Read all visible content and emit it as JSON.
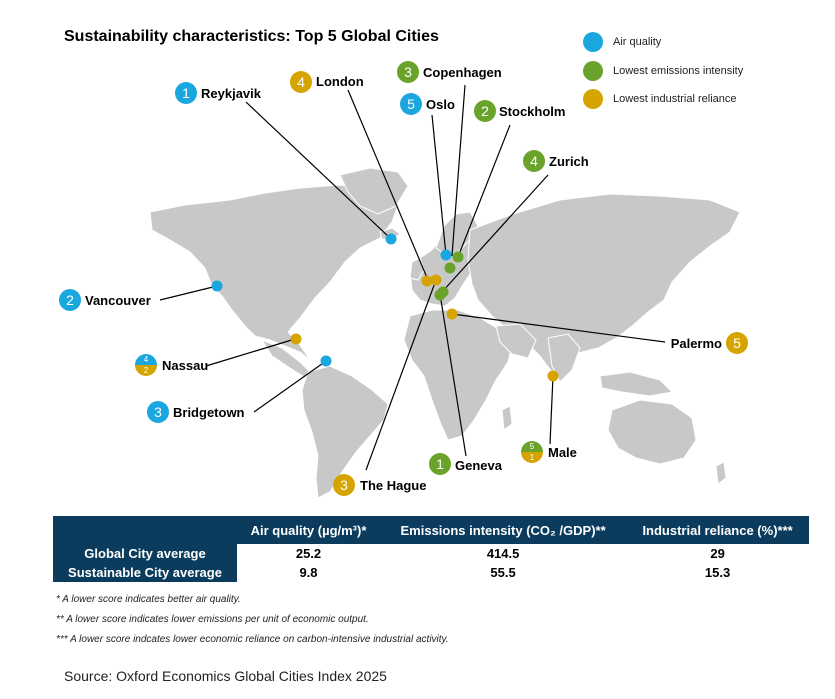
{
  "title": "Sustainability characteristics: Top 5 Global Cities",
  "legend": [
    {
      "label": "Air quality",
      "color": "#1aa7e0"
    },
    {
      "label": "Lowest emissions intensity",
      "color": "#6aa32b"
    },
    {
      "label": "Lowest industrial reliance",
      "color": "#d6a400"
    }
  ],
  "cities": [
    {
      "name": "Reykjavik",
      "rank": "1",
      "category": "air"
    },
    {
      "name": "Vancouver",
      "rank": "2",
      "category": "air"
    },
    {
      "name": "Bridgetown",
      "rank": "3",
      "category": "air"
    },
    {
      "name": "Nassau",
      "rank_air": "4",
      "rank_industry": "2",
      "category": "split"
    },
    {
      "name": "Oslo",
      "rank": "5",
      "category": "air"
    },
    {
      "name": "Geneva",
      "rank": "1",
      "category": "emissions"
    },
    {
      "name": "Stockholm",
      "rank": "2",
      "category": "emissions"
    },
    {
      "name": "Copenhagen",
      "rank": "3",
      "category": "emissions"
    },
    {
      "name": "Zurich",
      "rank": "4",
      "category": "emissions"
    },
    {
      "name": "Male",
      "rank_emissions": "5",
      "rank_industry": "1",
      "category": "split"
    },
    {
      "name": "The Hague",
      "rank": "3",
      "category": "industry"
    },
    {
      "name": "London",
      "rank": "4",
      "category": "industry"
    },
    {
      "name": "Palermo",
      "rank": "5",
      "category": "industry"
    }
  ],
  "table": {
    "headers": [
      "Air quality (µg/m³)*",
      "Emissions intensity (CO₂ /GDP)**",
      "Industrial reliance (%)***"
    ],
    "rows": [
      {
        "label": "Global City average",
        "values": [
          "25.2",
          "414.5",
          "29"
        ]
      },
      {
        "label": "Sustainable City average",
        "values": [
          "9.8",
          "55.5",
          "15.3"
        ]
      }
    ]
  },
  "notes": [
    "* A lower score indicates better air quality.",
    "** A lower score indicates lower emissions per unit of economic output.",
    "*** A lower score indcates lower economic reliance on carbon-intensive industrial activity."
  ],
  "source": "Source: Oxford Economics Global Cities Index 2025"
}
